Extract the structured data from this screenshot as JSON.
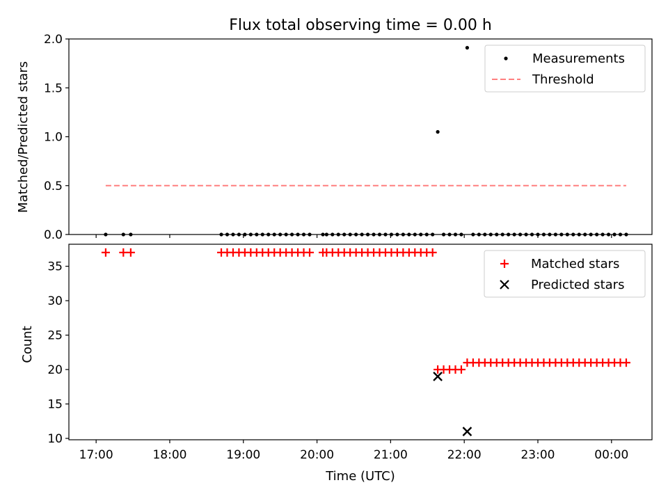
{
  "chart_data": [
    {
      "type": "scatter",
      "title": "Flux total observing time = 0.00 h",
      "ylabel": "Matched/Predicted stars",
      "ylim": [
        0,
        2
      ],
      "yticks": [
        0.0,
        0.5,
        1.0,
        1.5,
        2.0
      ],
      "ytick_labels": [
        "0.0",
        "0.5",
        "1.0",
        "1.5",
        "2.0"
      ],
      "xlim_hours": [
        16.63,
        24.55
      ],
      "legend": {
        "placement": "top-right",
        "entries": [
          "Measurements",
          "Threshold"
        ]
      },
      "series": [
        {
          "name": "Measurements",
          "kind": "scatter",
          "color": "#000000",
          "points": [
            [
              17.13,
              0
            ],
            [
              17.37,
              0
            ],
            [
              17.47,
              0
            ],
            [
              18.7,
              0
            ],
            [
              18.78,
              0
            ],
            [
              18.86,
              0
            ],
            [
              18.94,
              0
            ],
            [
              19.02,
              0
            ],
            [
              19.1,
              0
            ],
            [
              19.18,
              0
            ],
            [
              19.26,
              0
            ],
            [
              19.34,
              0
            ],
            [
              19.42,
              0
            ],
            [
              19.5,
              0
            ],
            [
              19.58,
              0
            ],
            [
              19.66,
              0
            ],
            [
              19.74,
              0
            ],
            [
              19.82,
              0
            ],
            [
              19.9,
              0
            ],
            [
              20.08,
              0
            ],
            [
              20.13,
              0
            ],
            [
              20.21,
              0
            ],
            [
              20.29,
              0
            ],
            [
              20.37,
              0
            ],
            [
              20.45,
              0
            ],
            [
              20.53,
              0
            ],
            [
              20.61,
              0
            ],
            [
              20.69,
              0
            ],
            [
              20.77,
              0
            ],
            [
              20.85,
              0
            ],
            [
              20.93,
              0
            ],
            [
              21.01,
              0
            ],
            [
              21.09,
              0
            ],
            [
              21.17,
              0
            ],
            [
              21.25,
              0
            ],
            [
              21.33,
              0
            ],
            [
              21.41,
              0
            ],
            [
              21.49,
              0
            ],
            [
              21.57,
              0
            ],
            [
              21.64,
              1.05
            ],
            [
              21.72,
              0
            ],
            [
              21.8,
              0
            ],
            [
              21.88,
              0
            ],
            [
              21.96,
              0
            ],
            [
              22.04,
              1.91
            ],
            [
              22.12,
              0
            ],
            [
              22.2,
              0
            ],
            [
              22.28,
              0
            ],
            [
              22.36,
              0
            ],
            [
              22.44,
              0
            ],
            [
              22.52,
              0
            ],
            [
              22.6,
              0
            ],
            [
              22.68,
              0
            ],
            [
              22.76,
              0
            ],
            [
              22.84,
              0
            ],
            [
              22.92,
              0
            ],
            [
              23.0,
              0
            ],
            [
              23.08,
              0
            ],
            [
              23.16,
              0
            ],
            [
              23.24,
              0
            ],
            [
              23.32,
              0
            ],
            [
              23.4,
              0
            ],
            [
              23.48,
              0
            ],
            [
              23.56,
              0
            ],
            [
              23.64,
              0
            ],
            [
              23.72,
              0
            ],
            [
              23.8,
              0
            ],
            [
              23.88,
              0
            ],
            [
              23.96,
              0
            ],
            [
              24.04,
              0
            ],
            [
              24.12,
              0
            ],
            [
              24.2,
              0
            ]
          ]
        },
        {
          "name": "Threshold",
          "kind": "dashed-line",
          "color": "#ff7f7f",
          "points": [
            [
              17.13,
              0.5
            ],
            [
              24.2,
              0.5
            ]
          ]
        }
      ]
    },
    {
      "type": "scatter",
      "xlabel": "Time (UTC)",
      "ylabel": "Count",
      "ylim": [
        9.8,
        38.2
      ],
      "yticks": [
        10,
        15,
        20,
        25,
        30,
        35
      ],
      "ytick_labels": [
        "10",
        "15",
        "20",
        "25",
        "30",
        "35"
      ],
      "xlim_hours": [
        16.63,
        24.55
      ],
      "xticks_hours": [
        17,
        18,
        19,
        20,
        21,
        22,
        23,
        24
      ],
      "xtick_labels": [
        "17:00",
        "18:00",
        "19:00",
        "20:00",
        "21:00",
        "22:00",
        "23:00",
        "00:00"
      ],
      "legend": {
        "placement": "top-right",
        "entries": [
          "Matched stars",
          "Predicted stars"
        ]
      },
      "series": [
        {
          "name": "Matched stars",
          "marker": "plus",
          "color": "#ff0000",
          "points": [
            [
              17.13,
              37
            ],
            [
              17.37,
              37
            ],
            [
              17.47,
              37
            ],
            [
              18.7,
              37
            ],
            [
              18.78,
              37
            ],
            [
              18.86,
              37
            ],
            [
              18.94,
              37
            ],
            [
              19.02,
              37
            ],
            [
              19.1,
              37
            ],
            [
              19.18,
              37
            ],
            [
              19.26,
              37
            ],
            [
              19.34,
              37
            ],
            [
              19.42,
              37
            ],
            [
              19.5,
              37
            ],
            [
              19.58,
              37
            ],
            [
              19.66,
              37
            ],
            [
              19.74,
              37
            ],
            [
              19.82,
              37
            ],
            [
              19.9,
              37
            ],
            [
              20.08,
              37
            ],
            [
              20.13,
              37
            ],
            [
              20.21,
              37
            ],
            [
              20.29,
              37
            ],
            [
              20.37,
              37
            ],
            [
              20.45,
              37
            ],
            [
              20.53,
              37
            ],
            [
              20.61,
              37
            ],
            [
              20.69,
              37
            ],
            [
              20.77,
              37
            ],
            [
              20.85,
              37
            ],
            [
              20.93,
              37
            ],
            [
              21.01,
              37
            ],
            [
              21.09,
              37
            ],
            [
              21.17,
              37
            ],
            [
              21.25,
              37
            ],
            [
              21.33,
              37
            ],
            [
              21.41,
              37
            ],
            [
              21.49,
              37
            ],
            [
              21.57,
              37
            ],
            [
              21.64,
              20
            ],
            [
              21.72,
              20
            ],
            [
              21.8,
              20
            ],
            [
              21.88,
              20
            ],
            [
              21.96,
              20
            ],
            [
              22.04,
              21
            ],
            [
              22.12,
              21
            ],
            [
              22.2,
              21
            ],
            [
              22.28,
              21
            ],
            [
              22.36,
              21
            ],
            [
              22.44,
              21
            ],
            [
              22.52,
              21
            ],
            [
              22.6,
              21
            ],
            [
              22.68,
              21
            ],
            [
              22.76,
              21
            ],
            [
              22.84,
              21
            ],
            [
              22.92,
              21
            ],
            [
              23.0,
              21
            ],
            [
              23.08,
              21
            ],
            [
              23.16,
              21
            ],
            [
              23.24,
              21
            ],
            [
              23.32,
              21
            ],
            [
              23.4,
              21
            ],
            [
              23.48,
              21
            ],
            [
              23.56,
              21
            ],
            [
              23.64,
              21
            ],
            [
              23.72,
              21
            ],
            [
              23.8,
              21
            ],
            [
              23.88,
              21
            ],
            [
              23.96,
              21
            ],
            [
              24.04,
              21
            ],
            [
              24.12,
              21
            ],
            [
              24.2,
              21
            ]
          ]
        },
        {
          "name": "Predicted stars",
          "marker": "x",
          "color": "#000000",
          "points": [
            [
              21.64,
              19
            ],
            [
              22.04,
              11
            ]
          ]
        }
      ]
    }
  ]
}
